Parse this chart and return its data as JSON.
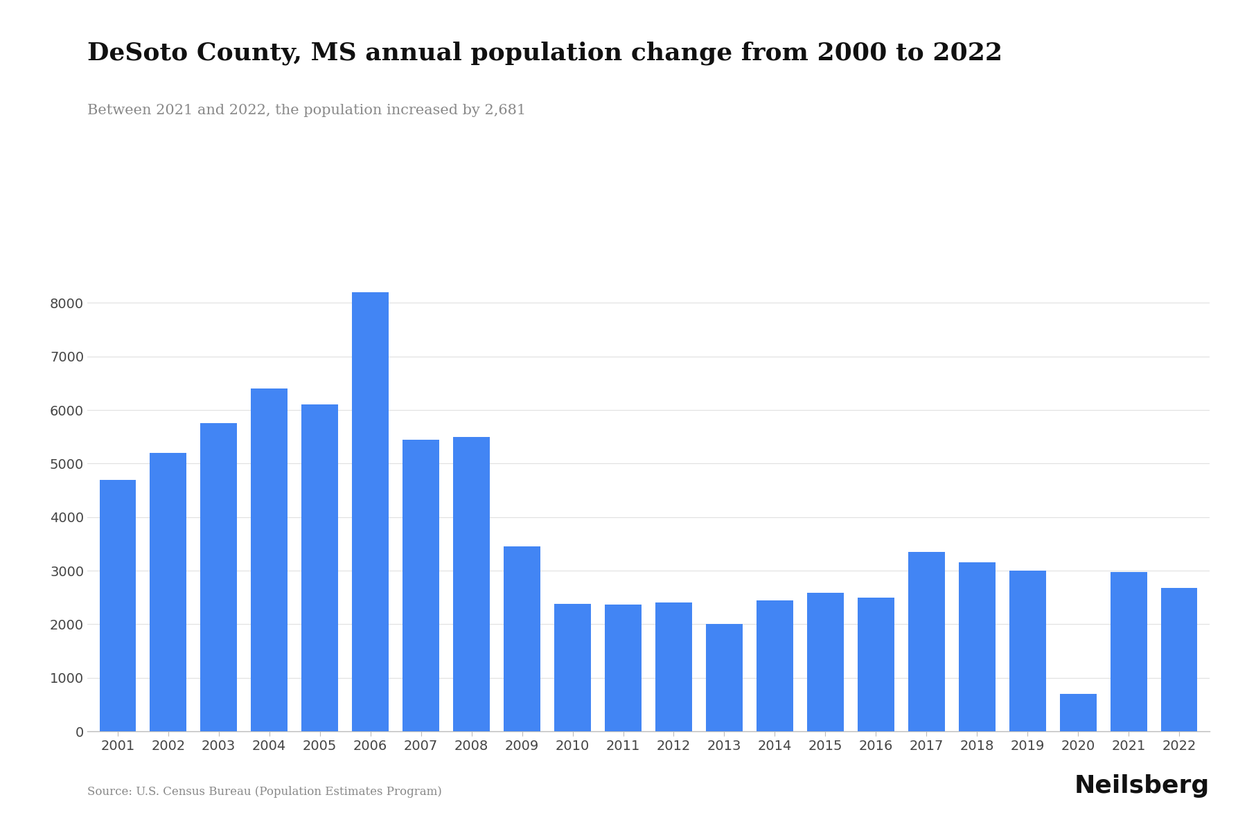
{
  "title": "DeSoto County, MS annual population change from 2000 to 2022",
  "subtitle": "Between 2021 and 2022, the population increased by 2,681",
  "source": "Source: U.S. Census Bureau (Population Estimates Program)",
  "branding": "Neilsberg",
  "years": [
    2001,
    2002,
    2003,
    2004,
    2005,
    2006,
    2007,
    2008,
    2009,
    2010,
    2011,
    2012,
    2013,
    2014,
    2015,
    2016,
    2017,
    2018,
    2019,
    2020,
    2021,
    2022
  ],
  "values": [
    4700,
    5200,
    5750,
    6400,
    6100,
    8200,
    5450,
    5500,
    3450,
    2380,
    2360,
    2400,
    2000,
    2450,
    2580,
    2500,
    3350,
    3150,
    3000,
    700,
    2970,
    2681
  ],
  "bar_color": "#4285f4",
  "background_color": "#ffffff",
  "ylim": [
    0,
    9000
  ],
  "yticks": [
    0,
    1000,
    2000,
    3000,
    4000,
    5000,
    6000,
    7000,
    8000
  ],
  "title_fontsize": 26,
  "subtitle_fontsize": 15,
  "tick_fontsize": 14,
  "source_fontsize": 12,
  "branding_fontsize": 26
}
